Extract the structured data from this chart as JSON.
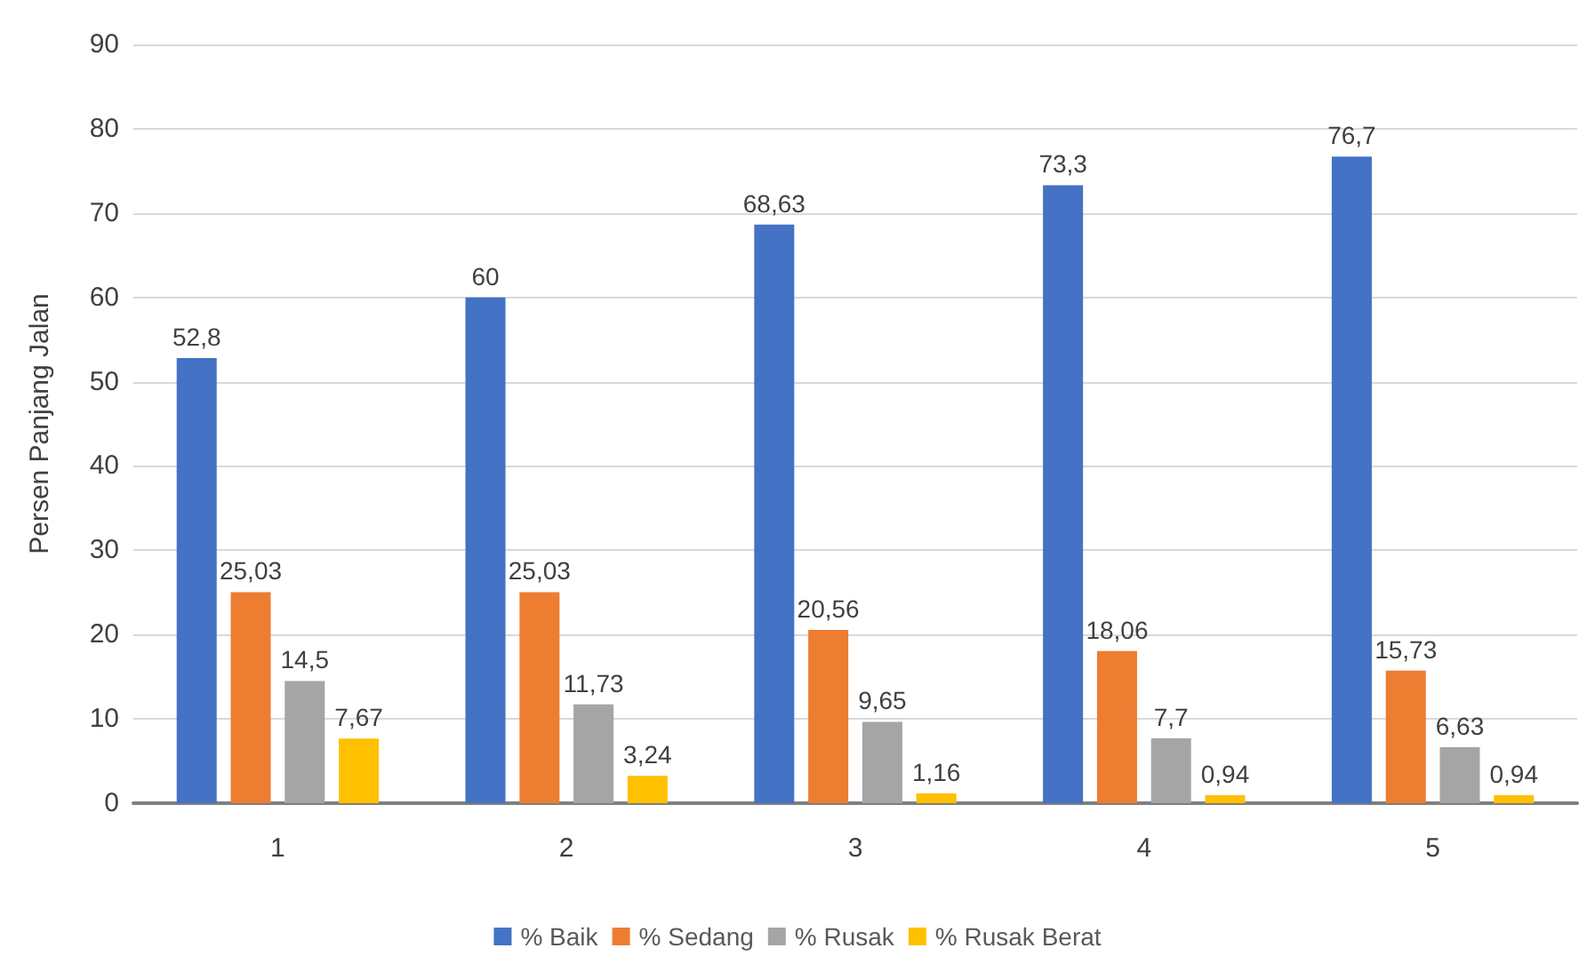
{
  "chart_data": {
    "type": "bar",
    "ylabel": "Persen Panjang Jalan",
    "categories": [
      "1",
      "2",
      "3",
      "4",
      "5"
    ],
    "series": [
      {
        "name": "% Baik",
        "color": "#4472c4",
        "values": [
          52.8,
          60,
          68.63,
          73.3,
          76.7
        ],
        "value_labels": [
          "52,8",
          "60",
          "68,63",
          "73,3",
          "76,7"
        ]
      },
      {
        "name": "% Sedang",
        "color": "#ed7d31",
        "values": [
          25.03,
          25.03,
          20.56,
          18.06,
          15.73
        ],
        "value_labels": [
          "25,03",
          "25,03",
          "20,56",
          "18,06",
          "15,73"
        ]
      },
      {
        "name": "% Rusak",
        "color": "#a5a5a5",
        "values": [
          14.5,
          11.73,
          9.65,
          7.7,
          6.63
        ],
        "value_labels": [
          "14,5",
          "11,73",
          "9,65",
          "7,7",
          "6,63"
        ]
      },
      {
        "name": "% Rusak Berat",
        "color": "#ffc000",
        "values": [
          7.67,
          3.24,
          1.16,
          0.94,
          0.94
        ],
        "value_labels": [
          "7,67",
          "3,24",
          "1,16",
          "0,94",
          "0,94"
        ]
      }
    ],
    "ylim": [
      0,
      90
    ],
    "yticks": [
      0,
      10,
      20,
      30,
      40,
      50,
      60,
      70,
      80,
      90
    ],
    "grid": "y",
    "legend": "bottom"
  }
}
